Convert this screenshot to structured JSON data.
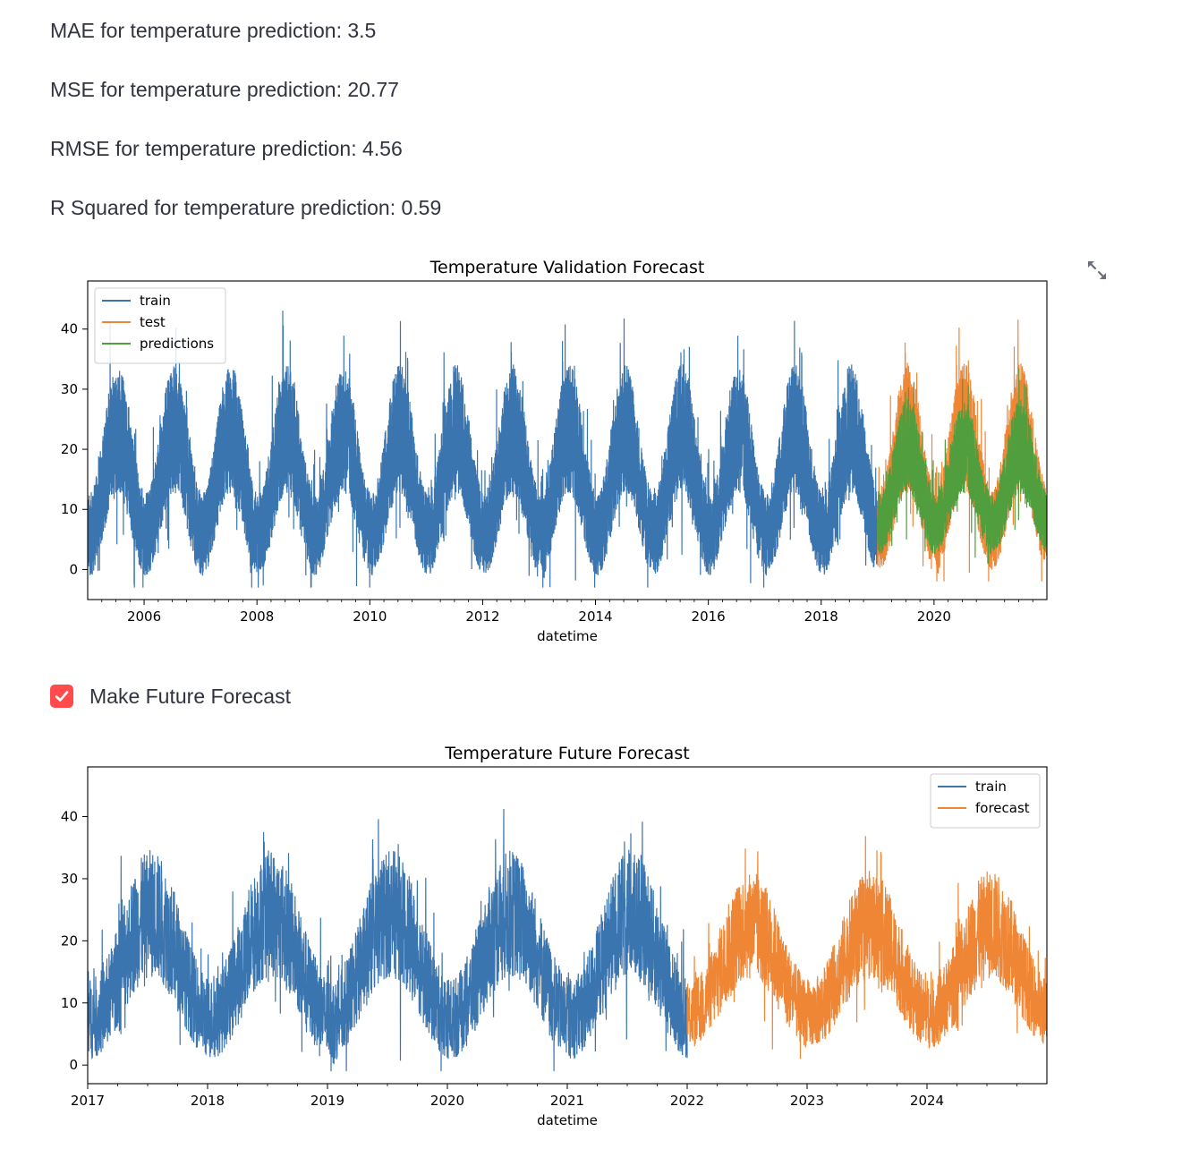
{
  "metrics": [
    "MAE for temperature prediction: 3.5",
    "MSE for temperature prediction: 20.77",
    "RMSE for temperature prediction: 4.56",
    "R Squared for temperature prediction: 0.59"
  ],
  "expand_icon": "expand-arrows-icon",
  "checkbox": {
    "label": "Make Future Forecast",
    "checked": true,
    "color": "#ff4b4b"
  },
  "chart_data": [
    {
      "type": "line",
      "title": "Temperature Validation Forecast",
      "xlabel": "datetime",
      "ylabel": "",
      "xlim": [
        "2005-01-01",
        "2022-01-01"
      ],
      "ylim": [
        -5,
        48
      ],
      "xticks": [
        "2006",
        "2008",
        "2010",
        "2012",
        "2014",
        "2016",
        "2018",
        "2020"
      ],
      "yticks": [
        0,
        10,
        20,
        30,
        40
      ],
      "legend": "top-left",
      "grid": false,
      "series": [
        {
          "name": "train",
          "color": "#3b75af",
          "start": "2005-01-01",
          "end": "2019-01-01",
          "min_approx": -3,
          "max_approx": 46
        },
        {
          "name": "test",
          "color": "#ef8636",
          "start": "2019-01-01",
          "end": "2022-01-01",
          "min_approx": -2,
          "max_approx": 46
        },
        {
          "name": "predictions",
          "color": "#519e3e",
          "start": "2019-01-01",
          "end": "2022-01-01",
          "min_approx": 1,
          "max_approx": 37
        }
      ]
    },
    {
      "type": "line",
      "title": "Temperature Future Forecast",
      "xlabel": "datetime",
      "ylabel": "",
      "xlim": [
        "2017-01-01",
        "2025-01-01"
      ],
      "ylim": [
        -3,
        48
      ],
      "xticks": [
        "2017",
        "2018",
        "2019",
        "2020",
        "2021",
        "2022",
        "2023",
        "2024"
      ],
      "yticks": [
        0,
        10,
        20,
        30,
        40
      ],
      "legend": "top-right",
      "grid": false,
      "series": [
        {
          "name": "train",
          "color": "#3b75af",
          "start": "2017-01-01",
          "end": "2022-01-01",
          "min_approx": -1,
          "max_approx": 46
        },
        {
          "name": "forecast",
          "color": "#ef8636",
          "start": "2022-01-01",
          "end": "2025-01-01",
          "min_approx": 1,
          "max_approx": 41
        }
      ]
    }
  ]
}
